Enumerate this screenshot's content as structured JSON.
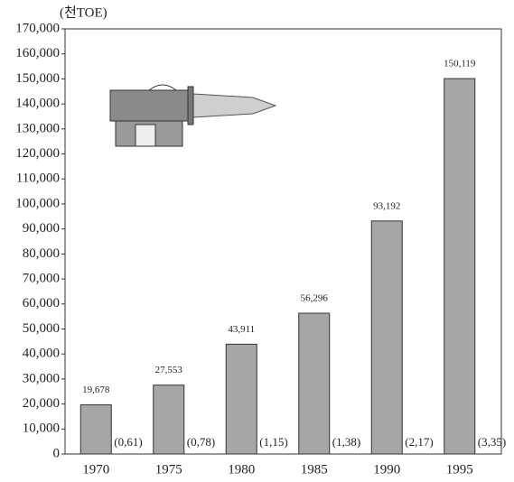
{
  "chart_data": {
    "type": "bar",
    "y_label": "(천TOE)",
    "categories": [
      "1970",
      "1975",
      "1980",
      "1985",
      "1990",
      "1995"
    ],
    "values": [
      19678,
      27553,
      43911,
      56296,
      93192,
      150119
    ],
    "value_labels": [
      "19,678",
      "27,553",
      "43,911",
      "56,296",
      "93,192",
      "150,119"
    ],
    "notes": [
      "(0,61)",
      "(0,78)",
      "(1,15)",
      "(1,38)",
      "(2,17)",
      "(3,35)"
    ],
    "color": "#a6a6a6",
    "ylim": [
      0,
      170000
    ],
    "yticks": [
      0,
      {
        "value": 10000,
        "label": "10,000"
      },
      {
        "value": 20000,
        "label": "20,000"
      },
      {
        "value": 30000,
        "label": "30,000"
      },
      {
        "value": 40000,
        "label": "40,000"
      },
      {
        "value": 50000,
        "label": "50,000"
      },
      {
        "value": 60000,
        "label": "60,000"
      },
      {
        "value": 70000,
        "label": "70,000"
      },
      {
        "value": 80000,
        "label": "80,000"
      },
      {
        "value": 90000,
        "label": "90,000"
      },
      {
        "value": 100000,
        "label": "100,000"
      },
      {
        "value": 110000,
        "label": "110,000"
      },
      {
        "value": 120000,
        "label": "120,000"
      },
      {
        "value": 130000,
        "label": "130,000"
      },
      {
        "value": 140000,
        "label": "140,000"
      },
      {
        "value": 150000,
        "label": "150,000"
      },
      {
        "value": 160000,
        "label": "160,000"
      },
      {
        "value": 170000,
        "label": "170,000"
      }
    ],
    "grid": false
  }
}
